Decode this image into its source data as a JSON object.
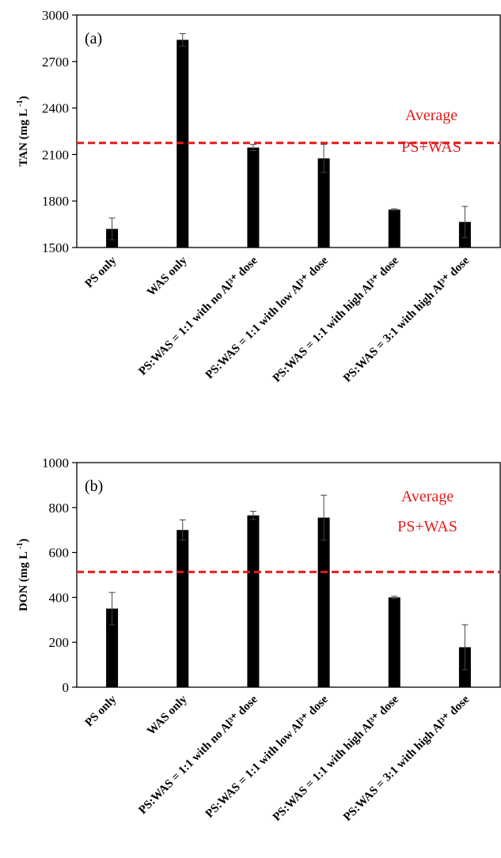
{
  "colors": {
    "bar": "#000000",
    "avg_line": "#e41a1c",
    "avg_text": "#e41a1c"
  },
  "chart_data": [
    {
      "type": "bar",
      "panel_label": "(a)",
      "ylabel_main": "TAN",
      "ylabel_unit": "(mg L",
      "ylabel_exp": "-1",
      "ylabel_close": ")",
      "ylim": [
        1500,
        3000
      ],
      "yticks": [
        1500,
        1800,
        2100,
        2400,
        2700,
        3000
      ],
      "categories": [
        "PS only",
        "WAS only",
        "PS:WAS = 1:1 with no Al³⁺ dose",
        "PS:WAS = 1:1 with low Al³⁺ dose",
        "PS:WAS = 1:1 with high Al³⁺ dose",
        "PS:WAS = 3:1 with high Al³⁺ dose"
      ],
      "values": [
        1620,
        2840,
        2145,
        2075,
        1745,
        1665
      ],
      "errors": [
        70,
        40,
        20,
        90,
        5,
        100
      ],
      "reference_line": {
        "value": 2175,
        "label_line1": "Average",
        "label_line2": "PS+WAS"
      },
      "grid": false
    },
    {
      "type": "bar",
      "panel_label": "(b)",
      "ylabel_main": "DON",
      "ylabel_unit": "(mg L",
      "ylabel_exp": "-1",
      "ylabel_close": ")",
      "ylim": [
        0,
        1000
      ],
      "yticks": [
        0,
        200,
        400,
        600,
        800,
        1000
      ],
      "categories": [
        "PS only",
        "WAS only",
        "PS:WAS = 1:1 with no Al³⁺ dose",
        "PS:WAS = 1:1 with low Al³⁺ dose",
        "PS:WAS = 1:1 with high Al³⁺ dose",
        "PS:WAS = 3:1 with high Al³⁺ dose"
      ],
      "values": [
        350,
        700,
        765,
        755,
        400,
        178
      ],
      "errors": [
        72,
        45,
        18,
        100,
        5,
        100
      ],
      "reference_line": {
        "value": 513,
        "label_line1": "Average",
        "label_line2": "PS+WAS"
      },
      "grid": false
    }
  ]
}
